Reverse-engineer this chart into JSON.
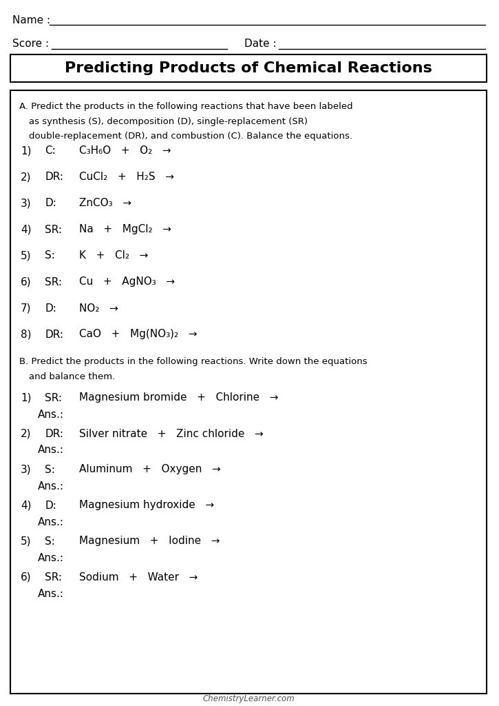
{
  "title": "Predicting Products of Chemical Reactions",
  "name_label": "Name :",
  "score_label": "Score :",
  "date_label": "Date :",
  "footer": "ChemistryLearner.com",
  "section_A_header": "A. Predict the products in the following reactions that have been labeled\n   as synthesis (S), decomposition (D), single-replacement (SR)\n   double-replacement (DR), and combustion (C). Balance the equations.",
  "section_B_header": "B. Predict the products in the following reactions. Write down the equations\n   and balance them.",
  "bg_color": "#ffffff",
  "box_color": "#000000",
  "text_color": "#000000",
  "light_bg": "#f0f0f0",
  "section_A_items": [
    {
      "num": "1)",
      "type": "C:",
      "formula": "C₃H₆O   +   O₂   →"
    },
    {
      "num": "2)",
      "type": "DR:",
      "formula": "CuCl₂   +   H₂S   →"
    },
    {
      "num": "3)",
      "type": "D:",
      "formula": "ZnCO₃   →"
    },
    {
      "num": "4)",
      "type": "SR:",
      "formula": "Na   +   MgCl₂   →"
    },
    {
      "num": "5)",
      "type": "S:",
      "formula": "K   +   Cl₂   →"
    },
    {
      "num": "6)",
      "type": "SR:",
      "formula": "Cu   +   AgNO₃   →"
    },
    {
      "num": "7)",
      "type": "D:",
      "formula": "NO₂   →"
    },
    {
      "num": "8)",
      "type": "DR:",
      "formula": "CaO   +   Mg(NO₃)₂   →"
    }
  ],
  "section_B_items": [
    {
      "num": "1)",
      "type": "SR:",
      "formula": "Magnesium bromide   +   Chlorine   →"
    },
    {
      "num": "2)",
      "type": "DR:",
      "formula": "Silver nitrate   +   Zinc chloride   →"
    },
    {
      "num": "3)",
      "type": "S:",
      "formula": "Aluminum   +   Oxygen   →"
    },
    {
      "num": "4)",
      "type": "D:",
      "formula": "Magnesium hydroxide   →"
    },
    {
      "num": "5)",
      "type": "S:",
      "formula": "Magnesium   +   Iodine   →"
    },
    {
      "num": "6)",
      "type": "SR:",
      "formula": "Sodium   +   Water   →"
    }
  ]
}
